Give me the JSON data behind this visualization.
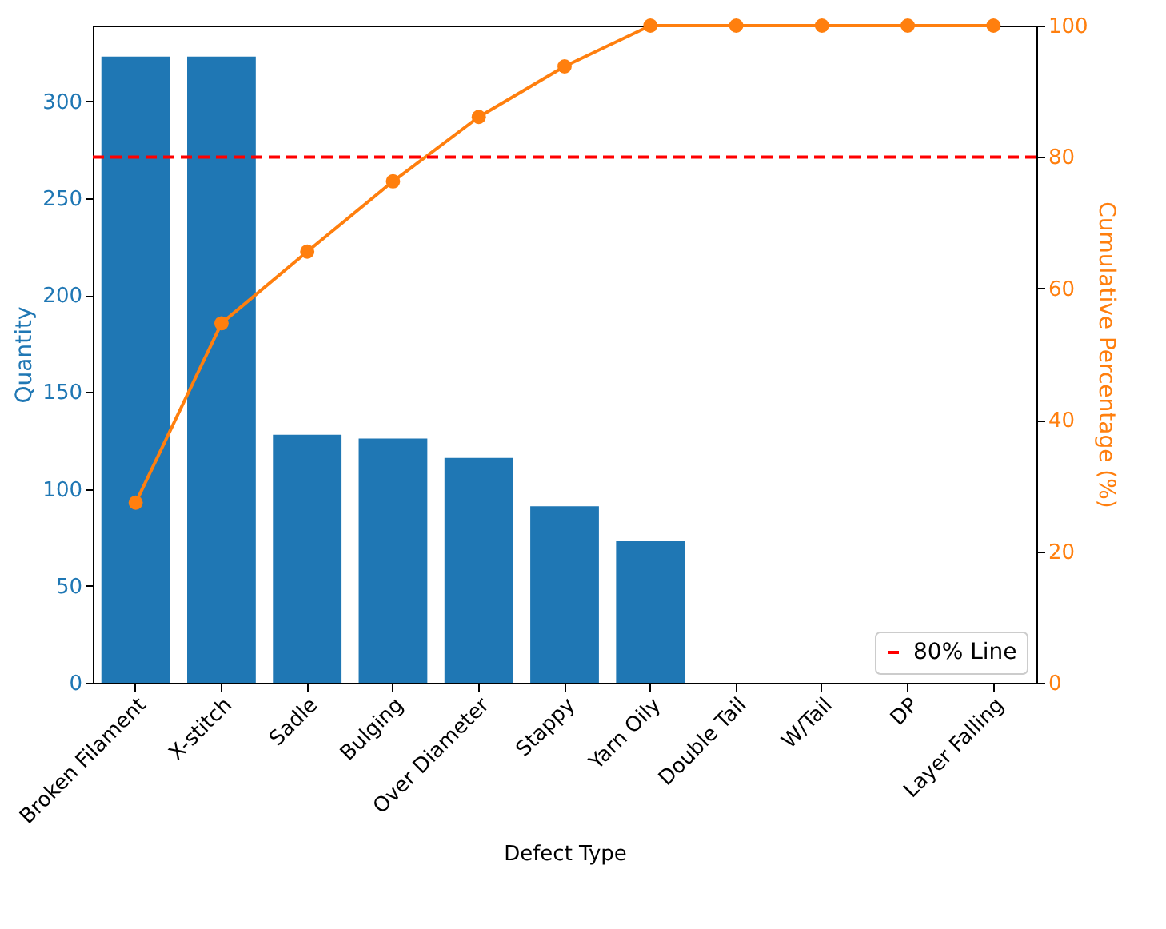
{
  "chart_data": {
    "type": "bar",
    "xlabel": "Defect Type",
    "ylabel": "Quantity",
    "y2label": "Cumulative Percentage (%)",
    "categories": [
      "Broken Filament",
      "X-stitch",
      "Sadle",
      "Bulging",
      "Over Diameter",
      "Stappy",
      "Yarn Oily",
      "Double Tail",
      "W/Tail",
      "DP",
      "Layer Falling"
    ],
    "series": [
      {
        "color": "#1f77b4",
        "values": [
          323,
          323,
          128,
          126,
          116,
          91,
          73,
          0,
          0,
          0,
          0
        ]
      },
      {
        "type": "line",
        "axis": "y2",
        "color": "#ff7f0e",
        "marker": "circle",
        "values": [
          27.4,
          54.7,
          65.6,
          76.3,
          86.1,
          93.8,
          100,
          100,
          100,
          100,
          100
        ]
      }
    ],
    "ylim": [
      0,
      339
    ],
    "yticks": [
      0,
      50,
      100,
      150,
      200,
      250,
      300
    ],
    "y2lim": [
      0,
      100
    ],
    "y2ticks": [
      0,
      20,
      40,
      60,
      80,
      100
    ],
    "ref_lines": [
      {
        "axis": "y2",
        "value": 80,
        "label": "80% Line",
        "color": "#ff0000",
        "line_style": "dashed"
      }
    ],
    "legend": "bottom right",
    "grid": false
  }
}
